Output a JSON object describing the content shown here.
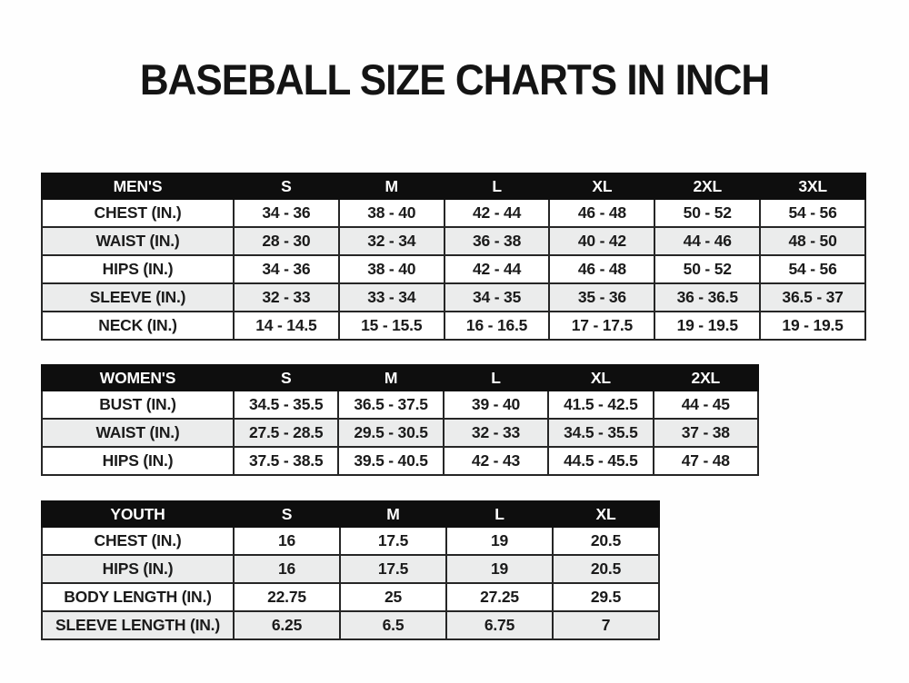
{
  "page": {
    "title": "BASEBALL SIZE CHARTS IN INCH"
  },
  "colors": {
    "header_bg": "#0e0e0e",
    "header_text": "#ffffff",
    "row_bg": "#ffffff",
    "row_alt_bg": "#ebecec",
    "border": "#262626",
    "text": "#1b1b1b",
    "page_bg": "#fefefe"
  },
  "tables": [
    {
      "name": "mens",
      "header": [
        "MEN'S",
        "S",
        "M",
        "L",
        "XL",
        "2XL",
        "3XL"
      ],
      "rows": [
        {
          "label": "CHEST (IN.)",
          "values": [
            "34 - 36",
            "38 - 40",
            "42 - 44",
            "46 - 48",
            "50 - 52",
            "54 - 56"
          ]
        },
        {
          "label": "WAIST (IN.)",
          "values": [
            "28 - 30",
            "32 - 34",
            "36 - 38",
            "40 - 42",
            "44 - 46",
            "48 - 50"
          ]
        },
        {
          "label": "HIPS (IN.)",
          "values": [
            "34 - 36",
            "38 - 40",
            "42 - 44",
            "46 - 48",
            "50 - 52",
            "54 - 56"
          ]
        },
        {
          "label": "SLEEVE (IN.)",
          "values": [
            "32 - 33",
            "33 - 34",
            "34 - 35",
            "35 - 36",
            "36 - 36.5",
            "36.5 - 37"
          ]
        },
        {
          "label": "NECK (IN.)",
          "values": [
            "14 - 14.5",
            "15 - 15.5",
            "16 - 16.5",
            "17 - 17.5",
            "19 - 19.5",
            "19 - 19.5"
          ]
        }
      ]
    },
    {
      "name": "womens",
      "header": [
        "WOMEN'S",
        "S",
        "M",
        "L",
        "XL",
        "2XL"
      ],
      "rows": [
        {
          "label": "BUST (IN.)",
          "values": [
            "34.5 - 35.5",
            "36.5 - 37.5",
            "39 - 40",
            "41.5 - 42.5",
            "44 - 45"
          ]
        },
        {
          "label": "WAIST (IN.)",
          "values": [
            "27.5 - 28.5",
            "29.5 - 30.5",
            "32 - 33",
            "34.5 - 35.5",
            "37 - 38"
          ]
        },
        {
          "label": "HIPS (IN.)",
          "values": [
            "37.5 - 38.5",
            "39.5 - 40.5",
            "42 - 43",
            "44.5 - 45.5",
            "47 - 48"
          ]
        }
      ]
    },
    {
      "name": "youth",
      "header": [
        "YOUTH",
        "S",
        "M",
        "L",
        "XL"
      ],
      "rows": [
        {
          "label": "CHEST (IN.)",
          "values": [
            "16",
            "17.5",
            "19",
            "20.5"
          ]
        },
        {
          "label": "HIPS (IN.)",
          "values": [
            "16",
            "17.5",
            "19",
            "20.5"
          ]
        },
        {
          "label": "BODY LENGTH (IN.)",
          "values": [
            "22.75",
            "25",
            "27.25",
            "29.5"
          ]
        },
        {
          "label": "SLEEVE LENGTH (IN.)",
          "values": [
            "6.25",
            "6.5",
            "6.75",
            "7"
          ]
        }
      ]
    }
  ],
  "chart_data": [
    {
      "type": "table",
      "title": "MEN'S",
      "columns": [
        "MEN'S",
        "S",
        "M",
        "L",
        "XL",
        "2XL",
        "3XL"
      ],
      "rows": [
        [
          "CHEST (IN.)",
          "34 - 36",
          "38 - 40",
          "42 - 44",
          "46 - 48",
          "50 - 52",
          "54 - 56"
        ],
        [
          "WAIST (IN.)",
          "28 - 30",
          "32 - 34",
          "36 - 38",
          "40 - 42",
          "44 - 46",
          "48 - 50"
        ],
        [
          "HIPS (IN.)",
          "34 - 36",
          "38 - 40",
          "42 - 44",
          "46 - 48",
          "50 - 52",
          "54 - 56"
        ],
        [
          "SLEEVE (IN.)",
          "32 - 33",
          "33 - 34",
          "34 - 35",
          "35 - 36",
          "36 - 36.5",
          "36.5 - 37"
        ],
        [
          "NECK (IN.)",
          "14 - 14.5",
          "15 - 15.5",
          "16 - 16.5",
          "17 - 17.5",
          "19 - 19.5",
          "19 - 19.5"
        ]
      ]
    },
    {
      "type": "table",
      "title": "WOMEN'S",
      "columns": [
        "WOMEN'S",
        "S",
        "M",
        "L",
        "XL",
        "2XL"
      ],
      "rows": [
        [
          "BUST (IN.)",
          "34.5 - 35.5",
          "36.5 - 37.5",
          "39 - 40",
          "41.5 - 42.5",
          "44 - 45"
        ],
        [
          "WAIST (IN.)",
          "27.5 - 28.5",
          "29.5 - 30.5",
          "32 - 33",
          "34.5 - 35.5",
          "37 - 38"
        ],
        [
          "HIPS (IN.)",
          "37.5 - 38.5",
          "39.5 - 40.5",
          "42 - 43",
          "44.5 - 45.5",
          "47 - 48"
        ]
      ]
    },
    {
      "type": "table",
      "title": "YOUTH",
      "columns": [
        "YOUTH",
        "S",
        "M",
        "L",
        "XL"
      ],
      "rows": [
        [
          "CHEST (IN.)",
          "16",
          "17.5",
          "19",
          "20.5"
        ],
        [
          "HIPS (IN.)",
          "16",
          "17.5",
          "19",
          "20.5"
        ],
        [
          "BODY LENGTH (IN.)",
          "22.75",
          "25",
          "27.25",
          "29.5"
        ],
        [
          "SLEEVE LENGTH (IN.)",
          "6.25",
          "6.5",
          "6.75",
          "7"
        ]
      ]
    }
  ]
}
